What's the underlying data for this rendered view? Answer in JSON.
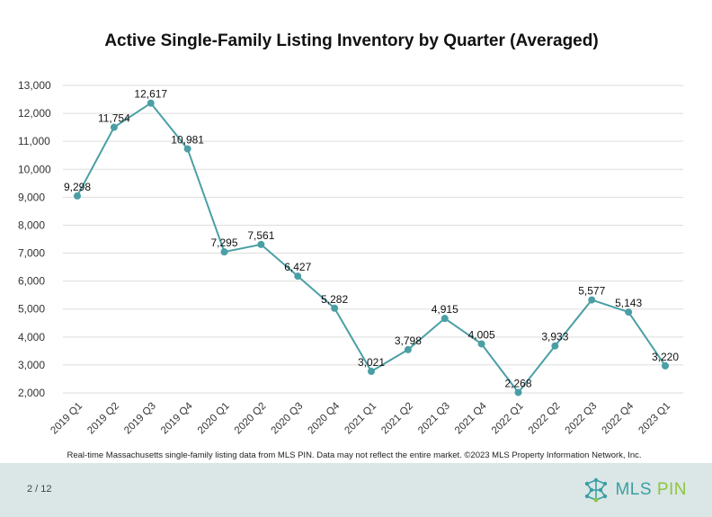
{
  "title": "Active Single-Family Listing Inventory by Quarter (Averaged)",
  "source_note": "Real-time Massachusetts single-family listing data from MLS PIN. Data may not reflect the entire market. ©2023 MLS Property Information Network, Inc.",
  "page_indicator": "2 / 12",
  "logo": {
    "main": "MLS",
    "accent": "PIN",
    "icon": "mls-pin-network-icon"
  },
  "colors": {
    "series": "#4a9fa5",
    "footer_bg": "#dbe6e6",
    "grid": "#dddddd"
  },
  "chart_data": {
    "type": "line",
    "title": "Active Single-Family Listing Inventory by Quarter (Averaged)",
    "xlabel": "",
    "ylabel": "",
    "ylim": [
      2000,
      13000
    ],
    "yticks": [
      "2,000",
      "3,000",
      "4,000",
      "5,000",
      "6,000",
      "7,000",
      "8,000",
      "9,000",
      "10,000",
      "11,000",
      "12,000",
      "13,000"
    ],
    "grid": true,
    "categories": [
      "2019 Q1",
      "2019 Q2",
      "2019 Q3",
      "2019 Q4",
      "2020 Q1",
      "2020 Q2",
      "2020 Q3",
      "2020 Q4",
      "2021 Q1",
      "2021 Q2",
      "2021 Q3",
      "2021 Q4",
      "2022 Q1",
      "2022 Q2",
      "2022 Q3",
      "2022 Q4",
      "2023 Q1"
    ],
    "values": [
      9298,
      11754,
      12617,
      10981,
      7295,
      7561,
      6427,
      5282,
      3021,
      3798,
      4915,
      4005,
      2268,
      3933,
      5577,
      5143,
      3220
    ],
    "value_labels": [
      "9,298",
      "11,754",
      "12,617",
      "10,981",
      "7,295",
      "7,561",
      "6,427",
      "5,282",
      "3,021",
      "3,798",
      "4,915",
      "4,005",
      "2,268",
      "3,933",
      "5,577",
      "5,143",
      "3,220"
    ]
  }
}
